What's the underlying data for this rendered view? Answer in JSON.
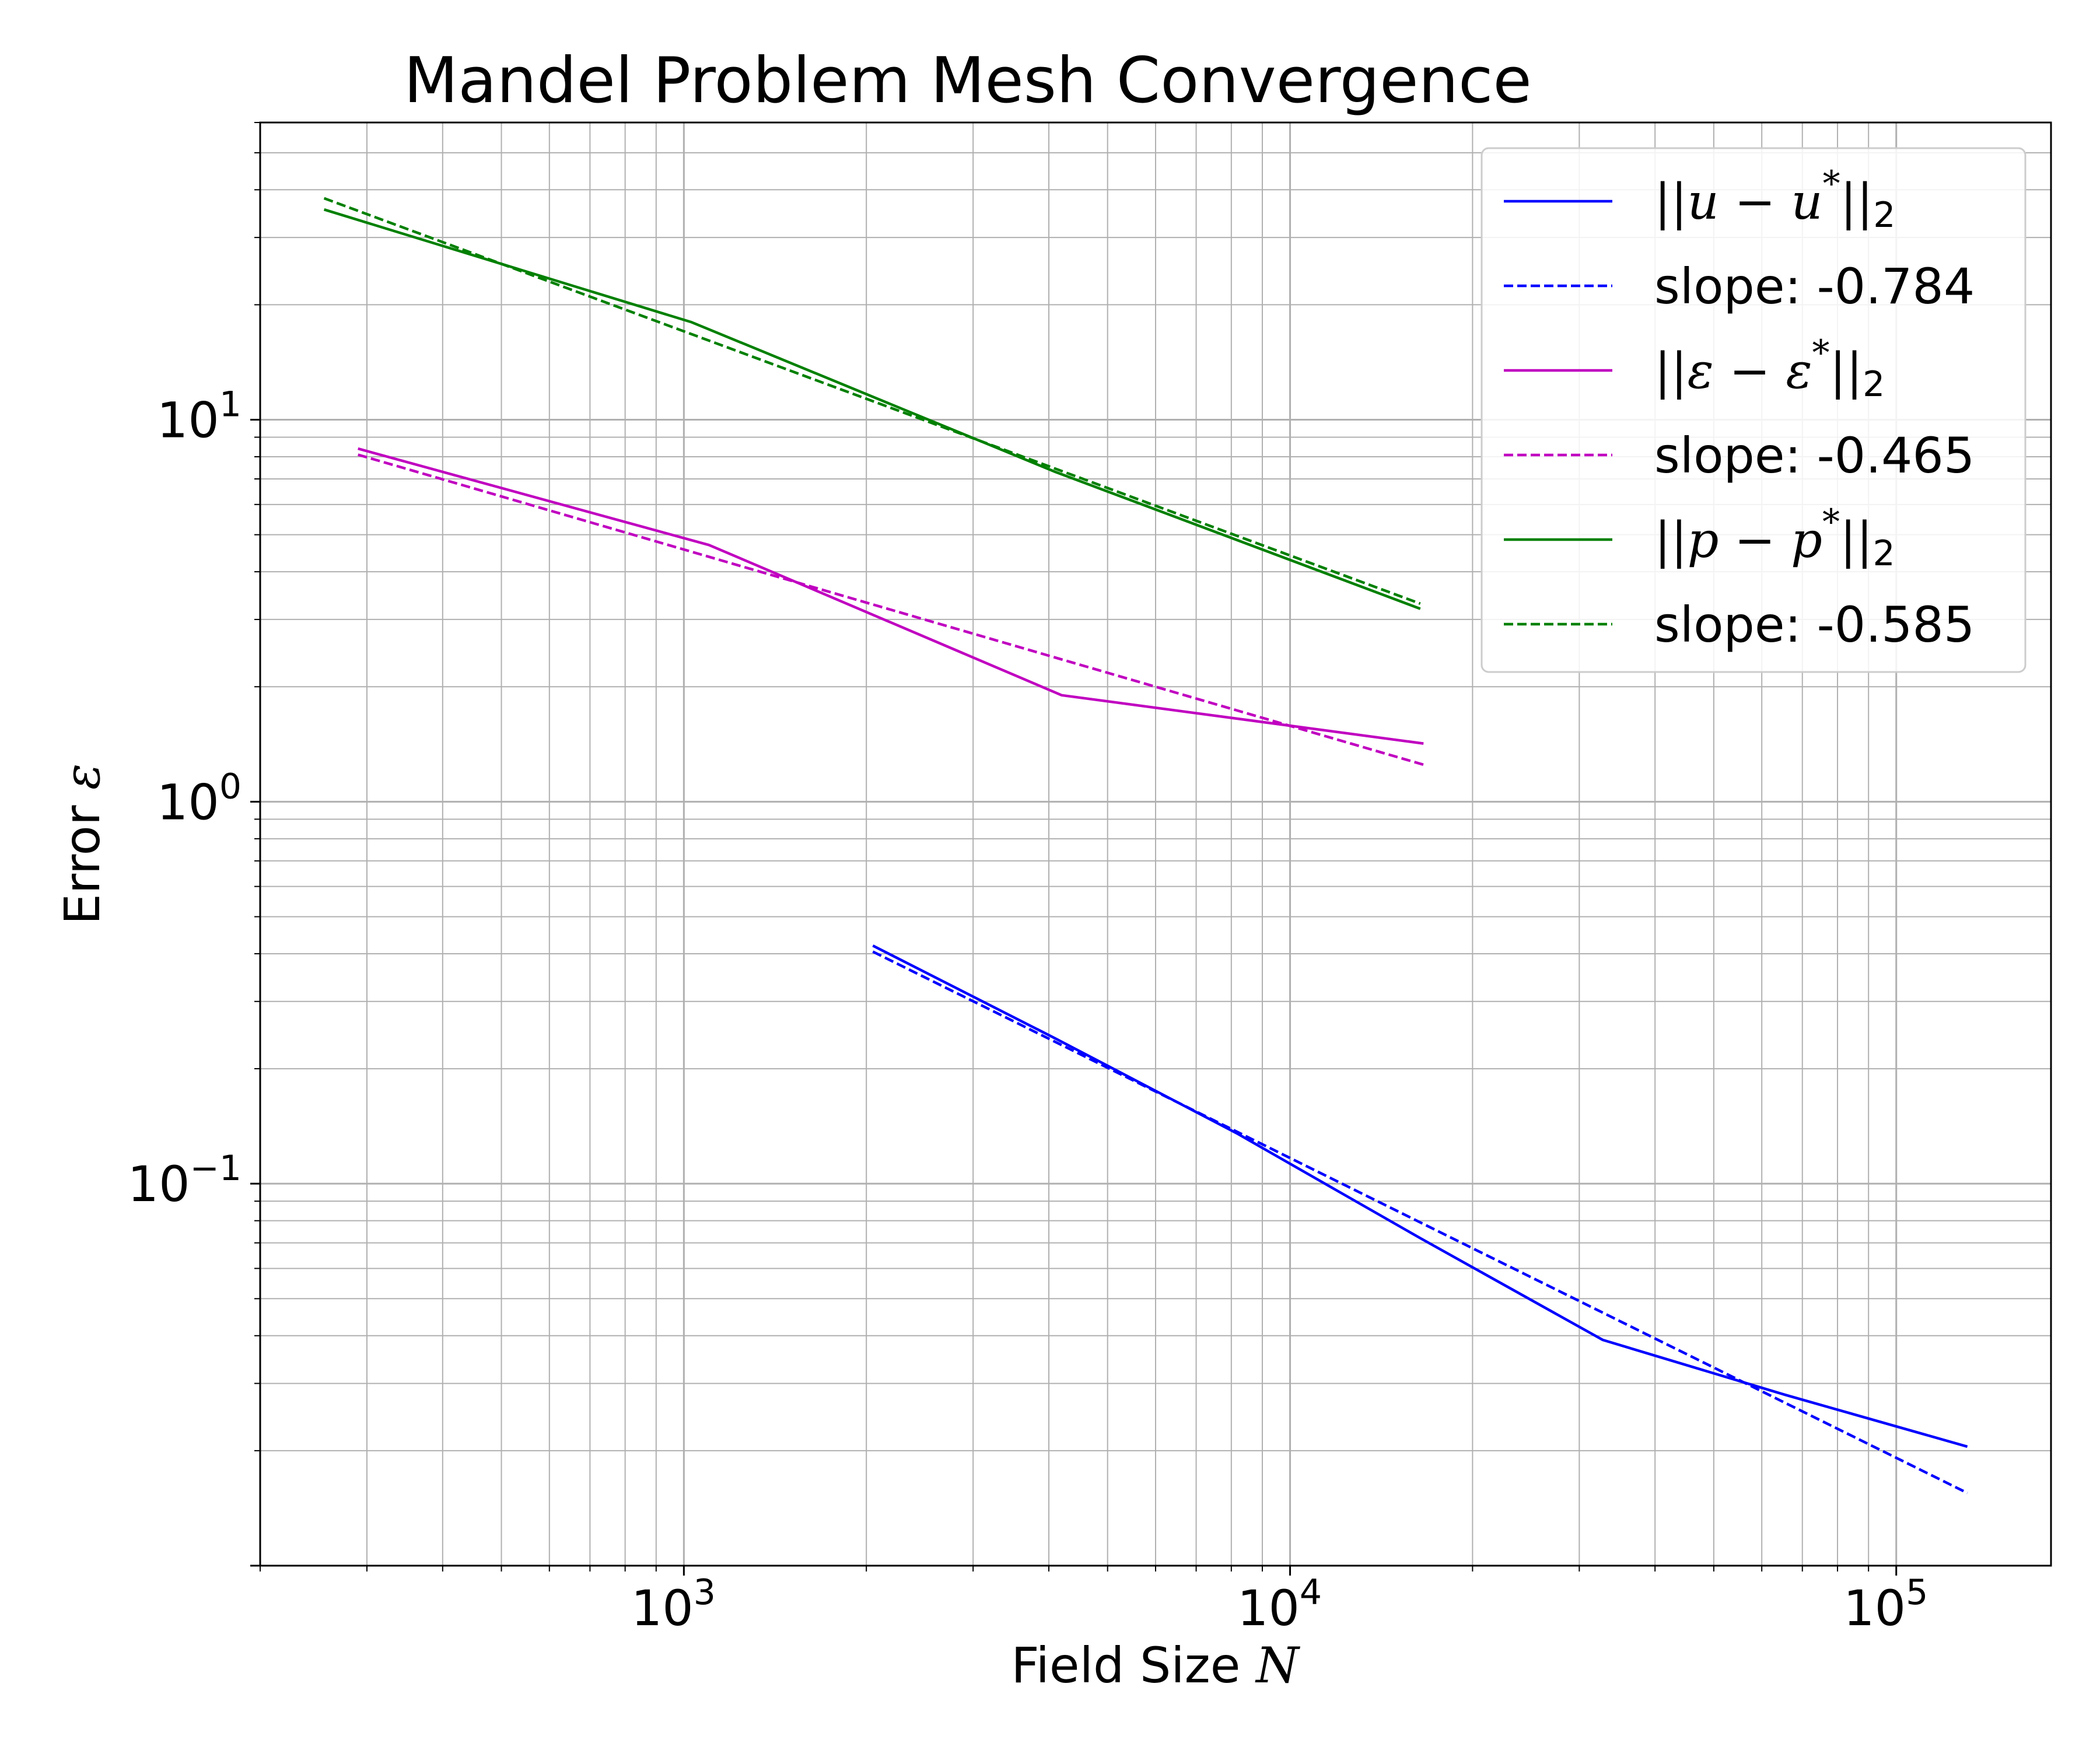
{
  "chart_data": {
    "type": "line",
    "title": "Mandel Problem Mesh Convergence",
    "xlabel": "Field Size N",
    "ylabel": "Error ε",
    "xscale": "log",
    "yscale": "log",
    "xlim": [
      200,
      180000
    ],
    "ylim": [
      0.01,
      60
    ],
    "x_ticks": [
      1000,
      10000,
      100000
    ],
    "x_tick_labels": [
      "10^3",
      "10^4",
      "10^5"
    ],
    "y_ticks": [
      0.1,
      1,
      10
    ],
    "y_tick_labels": [
      "10^-1",
      "10^0",
      "10^1"
    ],
    "grid": "major and minor",
    "legend_position": "top-right",
    "series": [
      {
        "name": "||u − u*||₂",
        "style": "solid",
        "color": "#0000ff",
        "x": [
          2050,
          4100,
          8200,
          16400,
          32800,
          65600,
          131000
        ],
        "y": [
          0.42,
          0.24,
          0.135,
          0.072,
          0.039,
          0.028,
          0.0205
        ]
      },
      {
        "name": "slope: -0.784",
        "style": "dashed",
        "color": "#0000ff",
        "x": [
          2050,
          131000
        ],
        "y": [
          0.405,
          0.0155
        ]
      },
      {
        "name": "||ε − ε*||₂",
        "style": "solid",
        "color": "#c000c0",
        "x": [
          290,
          1100,
          4200,
          16600
        ],
        "y": [
          8.4,
          4.7,
          1.9,
          1.42
        ]
      },
      {
        "name": "slope: -0.465",
        "style": "dashed",
        "color": "#c000c0",
        "x": [
          290,
          16600
        ],
        "y": [
          8.1,
          1.25
        ]
      },
      {
        "name": "||p − p*||₂",
        "style": "solid",
        "color": "#008000",
        "x": [
          255,
          1030,
          4100,
          16400
        ],
        "y": [
          35.5,
          18,
          7.3,
          3.2
        ]
      },
      {
        "name": "slope: -0.585",
        "style": "dashed",
        "color": "#008000",
        "x": [
          255,
          16400
        ],
        "y": [
          38,
          3.3
        ]
      }
    ],
    "legend": [
      {
        "kind": "math",
        "base": "||u − u",
        "sup": "*",
        "tail": "||",
        "sub": "2"
      },
      {
        "kind": "text",
        "text": "slope: -0.784"
      },
      {
        "kind": "math",
        "base": "||ε − ε",
        "sup": "*",
        "tail": "||",
        "sub": "2"
      },
      {
        "kind": "text",
        "text": "slope: -0.465"
      },
      {
        "kind": "math",
        "base": "||p − p",
        "sup": "*",
        "tail": "||",
        "sub": "2"
      },
      {
        "kind": "text",
        "text": "slope: -0.585"
      }
    ]
  }
}
